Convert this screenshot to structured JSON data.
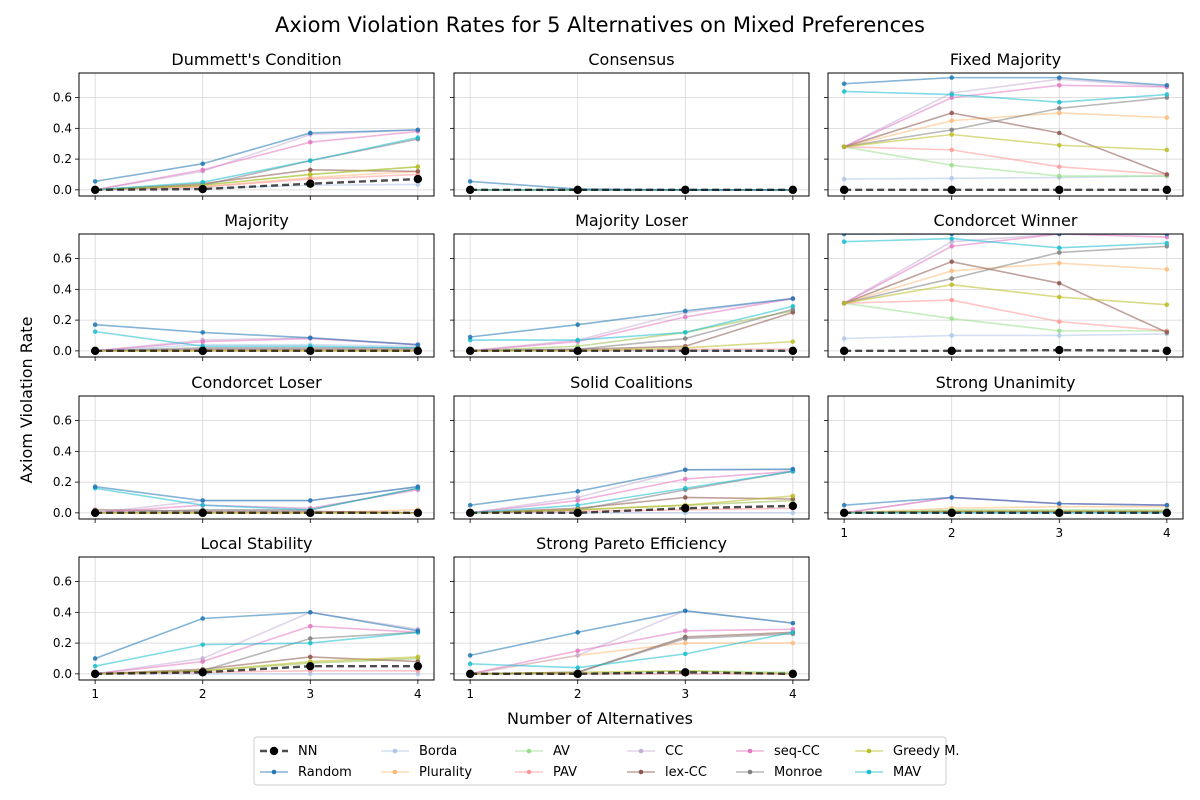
{
  "figure": {
    "title": "Axiom Violation Rates for 5 Alternatives on Mixed Preferences",
    "xlabel": "Number of Alternatives",
    "ylabel": "Axiom Violation Rate"
  },
  "legend": {
    "placement": "bottom-center",
    "entries": [
      {
        "key": "NN",
        "label": "NN",
        "color": "#000000"
      },
      {
        "key": "Random",
        "label": "Random",
        "color": "#1f77b4"
      },
      {
        "key": "Borda",
        "label": "Borda",
        "color": "#aec7e8"
      },
      {
        "key": "Plurality",
        "label": "Plurality",
        "color": "#ffbb78"
      },
      {
        "key": "AV",
        "label": "AV",
        "color": "#98df8a"
      },
      {
        "key": "PAV",
        "label": "PAV",
        "color": "#ff9896"
      },
      {
        "key": "CC",
        "label": "CC",
        "color": "#c5b0d5"
      },
      {
        "key": "lexCC",
        "label": "lex-CC",
        "color": "#8c564b"
      },
      {
        "key": "seqCC",
        "label": "seq-CC",
        "color": "#e377c2"
      },
      {
        "key": "Monroe",
        "label": "Monroe",
        "color": "#7f7f7f"
      },
      {
        "key": "Greedy",
        "label": "Greedy M.",
        "color": "#bcbd22"
      },
      {
        "key": "MAV",
        "label": "MAV",
        "color": "#17becf"
      }
    ]
  },
  "chart_data": {
    "type": "line",
    "x": [
      1,
      2,
      3,
      4
    ],
    "ylim": [
      -0.04,
      0.76
    ],
    "yticks": [
      "0.0",
      "0.2",
      "0.4",
      "0.6"
    ],
    "xticks": [
      "1",
      "2",
      "3",
      "4"
    ],
    "grid": true,
    "panels": [
      {
        "title": "Dummett's Condition",
        "series": {
          "NN": [
            0.0,
            0.005,
            0.04,
            0.07
          ],
          "Random": [
            0.055,
            0.17,
            0.37,
            0.39
          ],
          "Borda": [
            0.0,
            0.01,
            0.03,
            0.035
          ],
          "Plurality": [
            0.0,
            0.02,
            0.08,
            0.12
          ],
          "AV": [
            0.0,
            0.03,
            0.1,
            0.15
          ],
          "PAV": [
            0.0,
            0.02,
            0.07,
            0.1
          ],
          "CC": [
            0.0,
            0.12,
            0.36,
            0.39
          ],
          "lexCC": [
            0.0,
            0.04,
            0.13,
            0.12
          ],
          "seqCC": [
            0.0,
            0.13,
            0.31,
            0.38
          ],
          "Monroe": [
            0.0,
            0.03,
            0.19,
            0.33
          ],
          "Greedy": [
            0.0,
            0.03,
            0.1,
            0.15
          ],
          "MAV": [
            0.0,
            0.05,
            0.19,
            0.34
          ]
        }
      },
      {
        "title": "Consensus",
        "series": {
          "NN": [
            0.0,
            0.0,
            0.0,
            0.0
          ],
          "Random": [
            0.055,
            0.005,
            0.0,
            0.0
          ],
          "Borda": [
            0.0,
            0.0,
            0.0,
            0.0
          ],
          "Plurality": [
            0.0,
            0.0,
            0.0,
            0.0
          ],
          "AV": [
            0.0,
            0.0,
            0.0,
            0.0
          ],
          "PAV": [
            0.0,
            0.0,
            0.0,
            0.0
          ],
          "CC": [
            0.0,
            0.0,
            0.0,
            0.0
          ],
          "lexCC": [
            0.0,
            0.0,
            0.0,
            0.0
          ],
          "seqCC": [
            0.0,
            0.0,
            0.0,
            0.0
          ],
          "Monroe": [
            0.0,
            0.0,
            0.0,
            0.0
          ],
          "Greedy": [
            0.0,
            0.0,
            0.0,
            0.0
          ],
          "MAV": [
            0.0,
            0.0,
            0.0,
            0.0
          ]
        }
      },
      {
        "title": "Fixed Majority",
        "series": {
          "NN": [
            0.0,
            0.0,
            0.0,
            0.0
          ],
          "Random": [
            0.69,
            0.73,
            0.73,
            0.68
          ],
          "Borda": [
            0.07,
            0.075,
            0.08,
            0.09
          ],
          "Plurality": [
            0.28,
            0.45,
            0.5,
            0.47
          ],
          "AV": [
            0.28,
            0.16,
            0.09,
            0.09
          ],
          "PAV": [
            0.28,
            0.26,
            0.15,
            0.1
          ],
          "CC": [
            0.28,
            0.63,
            0.72,
            0.67
          ],
          "lexCC": [
            0.28,
            0.5,
            0.37,
            0.1
          ],
          "seqCC": [
            0.28,
            0.6,
            0.68,
            0.67
          ],
          "Monroe": [
            0.28,
            0.39,
            0.53,
            0.6
          ],
          "Greedy": [
            0.28,
            0.36,
            0.29,
            0.26
          ],
          "MAV": [
            0.64,
            0.62,
            0.57,
            0.62
          ]
        }
      },
      {
        "title": "Majority",
        "series": {
          "NN": [
            0.0,
            0.0,
            0.0,
            0.0
          ],
          "Random": [
            0.17,
            0.12,
            0.085,
            0.04
          ],
          "Borda": [
            0.0,
            0.04,
            0.04,
            0.03
          ],
          "Plurality": [
            0.0,
            0.0,
            0.0,
            0.0
          ],
          "AV": [
            0.0,
            0.0,
            0.0,
            0.0
          ],
          "PAV": [
            0.0,
            0.0,
            0.0,
            0.0
          ],
          "CC": [
            0.0,
            0.07,
            0.085,
            0.04
          ],
          "lexCC": [
            0.0,
            0.01,
            0.01,
            0.01
          ],
          "seqCC": [
            0.0,
            0.06,
            0.08,
            0.04
          ],
          "Monroe": [
            0.0,
            0.02,
            0.02,
            0.02
          ],
          "Greedy": [
            0.0,
            0.0,
            0.0,
            0.0
          ],
          "MAV": [
            0.125,
            0.03,
            0.03,
            0.02
          ]
        }
      },
      {
        "title": "Majority Loser",
        "series": {
          "NN": [
            0.0,
            0.0,
            0.0,
            0.0
          ],
          "Random": [
            0.09,
            0.17,
            0.26,
            0.34
          ],
          "Borda": [
            0.0,
            0.0,
            0.0,
            0.0
          ],
          "Plurality": [
            0.0,
            0.03,
            0.12,
            0.26
          ],
          "AV": [
            0.0,
            0.03,
            0.12,
            0.26
          ],
          "PAV": [
            0.0,
            0.0,
            0.01,
            0.01
          ],
          "CC": [
            0.0,
            0.07,
            0.25,
            0.34
          ],
          "lexCC": [
            0.0,
            0.01,
            0.03,
            0.25
          ],
          "seqCC": [
            0.0,
            0.06,
            0.22,
            0.34
          ],
          "Monroe": [
            0.0,
            0.01,
            0.08,
            0.27
          ],
          "Greedy": [
            0.0,
            0.0,
            0.02,
            0.06
          ],
          "MAV": [
            0.07,
            0.07,
            0.12,
            0.29
          ]
        }
      },
      {
        "title": "Condorcet Winner",
        "series": {
          "NN": [
            0.0,
            0.0,
            0.005,
            0.0
          ],
          "Random": [
            0.76,
            0.76,
            0.76,
            0.76
          ],
          "Borda": [
            0.08,
            0.1,
            0.1,
            0.11
          ],
          "Plurality": [
            0.31,
            0.52,
            0.57,
            0.53
          ],
          "AV": [
            0.31,
            0.21,
            0.13,
            0.13
          ],
          "PAV": [
            0.31,
            0.33,
            0.19,
            0.13
          ],
          "CC": [
            0.31,
            0.71,
            0.76,
            0.76
          ],
          "lexCC": [
            0.31,
            0.58,
            0.44,
            0.12
          ],
          "seqCC": [
            0.31,
            0.68,
            0.76,
            0.74
          ],
          "Monroe": [
            0.31,
            0.47,
            0.64,
            0.68
          ],
          "Greedy": [
            0.31,
            0.43,
            0.35,
            0.3
          ],
          "MAV": [
            0.71,
            0.73,
            0.67,
            0.7
          ]
        }
      },
      {
        "title": "Condorcet Loser",
        "series": {
          "NN": [
            0.0,
            0.0,
            0.0,
            0.0
          ],
          "Random": [
            0.17,
            0.08,
            0.08,
            0.17
          ],
          "Borda": [
            0.0,
            0.0,
            0.0,
            0.0
          ],
          "Plurality": [
            0.0,
            0.0,
            0.0,
            0.02
          ],
          "AV": [
            0.0,
            0.0,
            0.0,
            0.0
          ],
          "PAV": [
            0.0,
            0.0,
            0.0,
            0.0
          ],
          "CC": [
            0.0,
            0.08,
            0.08,
            0.17
          ],
          "lexCC": [
            0.02,
            0.01,
            0.01,
            0.0
          ],
          "seqCC": [
            0.0,
            0.05,
            0.03,
            0.15
          ],
          "Monroe": [
            0.0,
            0.02,
            0.02,
            0.16
          ],
          "Greedy": [
            0.0,
            0.0,
            0.0,
            0.0
          ],
          "MAV": [
            0.16,
            0.05,
            0.02,
            0.16
          ]
        }
      },
      {
        "title": "Solid Coalitions",
        "series": {
          "NN": [
            0.0,
            0.0,
            0.03,
            0.045
          ],
          "Random": [
            0.05,
            0.14,
            0.28,
            0.285
          ],
          "Borda": [
            0.0,
            0.0,
            0.0,
            0.0
          ],
          "Plurality": [
            0.0,
            0.02,
            0.05,
            0.08
          ],
          "AV": [
            0.0,
            0.02,
            0.05,
            0.08
          ],
          "PAV": [
            0.0,
            0.01,
            0.02,
            0.03
          ],
          "CC": [
            0.0,
            0.1,
            0.28,
            0.28
          ],
          "lexCC": [
            0.0,
            0.03,
            0.1,
            0.09
          ],
          "seqCC": [
            0.0,
            0.08,
            0.22,
            0.27
          ],
          "Monroe": [
            0.0,
            0.02,
            0.15,
            0.27
          ],
          "Greedy": [
            0.0,
            0.02,
            0.05,
            0.11
          ],
          "MAV": [
            0.0,
            0.05,
            0.16,
            0.27
          ]
        }
      },
      {
        "title": "Strong Unanimity",
        "series": {
          "NN": [
            0.0,
            0.0,
            0.0,
            0.0
          ],
          "Random": [
            0.05,
            0.1,
            0.06,
            0.05
          ],
          "Borda": [
            0.0,
            0.0,
            0.0,
            0.0
          ],
          "Plurality": [
            0.0,
            0.03,
            0.04,
            0.04
          ],
          "AV": [
            0.0,
            0.02,
            0.02,
            0.02
          ],
          "PAV": [
            0.0,
            0.01,
            0.01,
            0.01
          ],
          "CC": [
            0.0,
            0.1,
            0.06,
            0.05
          ],
          "lexCC": [
            0.0,
            0.01,
            0.01,
            0.01
          ],
          "seqCC": [
            0.0,
            0.1,
            0.06,
            0.05
          ],
          "Monroe": [
            0.0,
            0.01,
            0.01,
            0.01
          ],
          "Greedy": [
            0.0,
            0.01,
            0.01,
            0.01
          ],
          "MAV": [
            0.0,
            0.0,
            0.0,
            0.0
          ]
        }
      },
      {
        "title": "Local Stability",
        "series": {
          "NN": [
            0.0,
            0.01,
            0.05,
            0.05
          ],
          "Random": [
            0.1,
            0.36,
            0.4,
            0.28
          ],
          "Borda": [
            0.0,
            0.0,
            0.0,
            0.0
          ],
          "Plurality": [
            0.0,
            0.02,
            0.07,
            0.1
          ],
          "AV": [
            0.0,
            0.02,
            0.07,
            0.1
          ],
          "PAV": [
            0.0,
            0.01,
            0.02,
            0.02
          ],
          "CC": [
            0.0,
            0.1,
            0.4,
            0.29
          ],
          "lexCC": [
            0.0,
            0.03,
            0.11,
            0.08
          ],
          "seqCC": [
            0.0,
            0.08,
            0.31,
            0.27
          ],
          "Monroe": [
            0.0,
            0.02,
            0.23,
            0.27
          ],
          "Greedy": [
            0.0,
            0.02,
            0.08,
            0.11
          ],
          "MAV": [
            0.05,
            0.19,
            0.2,
            0.27
          ]
        }
      },
      {
        "title": "Strong Pareto Efficiency",
        "series": {
          "NN": [
            0.0,
            0.0,
            0.01,
            0.0
          ],
          "Random": [
            0.12,
            0.27,
            0.41,
            0.33
          ],
          "Borda": [
            0.0,
            0.0,
            0.0,
            0.0
          ],
          "Plurality": [
            0.0,
            0.12,
            0.2,
            0.2
          ],
          "AV": [
            0.0,
            0.0,
            0.02,
            0.01
          ],
          "PAV": [
            0.0,
            0.0,
            0.0,
            0.0
          ],
          "CC": [
            0.0,
            0.12,
            0.41,
            0.33
          ],
          "lexCC": [
            0.0,
            0.01,
            0.24,
            0.27
          ],
          "seqCC": [
            0.0,
            0.15,
            0.28,
            0.29
          ],
          "Monroe": [
            0.0,
            0.01,
            0.23,
            0.26
          ],
          "Greedy": [
            0.0,
            0.01,
            0.02,
            0.0
          ],
          "MAV": [
            0.065,
            0.04,
            0.13,
            0.27
          ]
        }
      }
    ]
  }
}
